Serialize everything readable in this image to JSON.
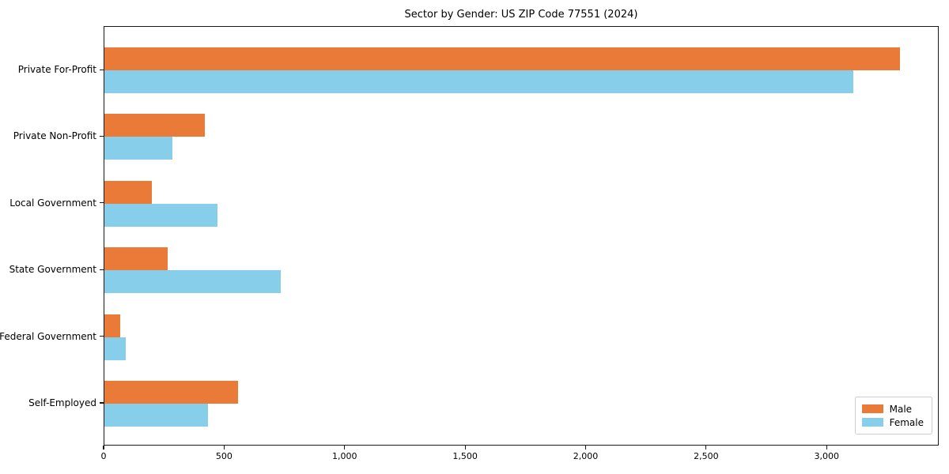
{
  "chart_data": {
    "type": "bar",
    "orientation": "horizontal",
    "title": "Sector by Gender: US ZIP Code 77551 (2024)",
    "xlabel": "",
    "ylabel": "",
    "categories": [
      "Private For-Profit",
      "Private Non-Profit",
      "Local Government",
      "State Government",
      "Federal Government",
      "Self-Employed"
    ],
    "series": [
      {
        "name": "Male",
        "color": "#EA7A38",
        "values": [
          3300,
          418,
          196,
          263,
          66,
          554
        ]
      },
      {
        "name": "Female",
        "color": "#87CEEB",
        "values": [
          3107,
          283,
          470,
          731,
          87,
          431
        ]
      }
    ],
    "xlim": [
      0,
      3465
    ],
    "xticks": [
      0,
      500,
      1000,
      1500,
      2000,
      2500,
      3000
    ],
    "xtick_labels": [
      "0",
      "500",
      "1,000",
      "1,500",
      "2,000",
      "2,500",
      "3,000"
    ],
    "legend_position": "lower right",
    "grid": false
  }
}
